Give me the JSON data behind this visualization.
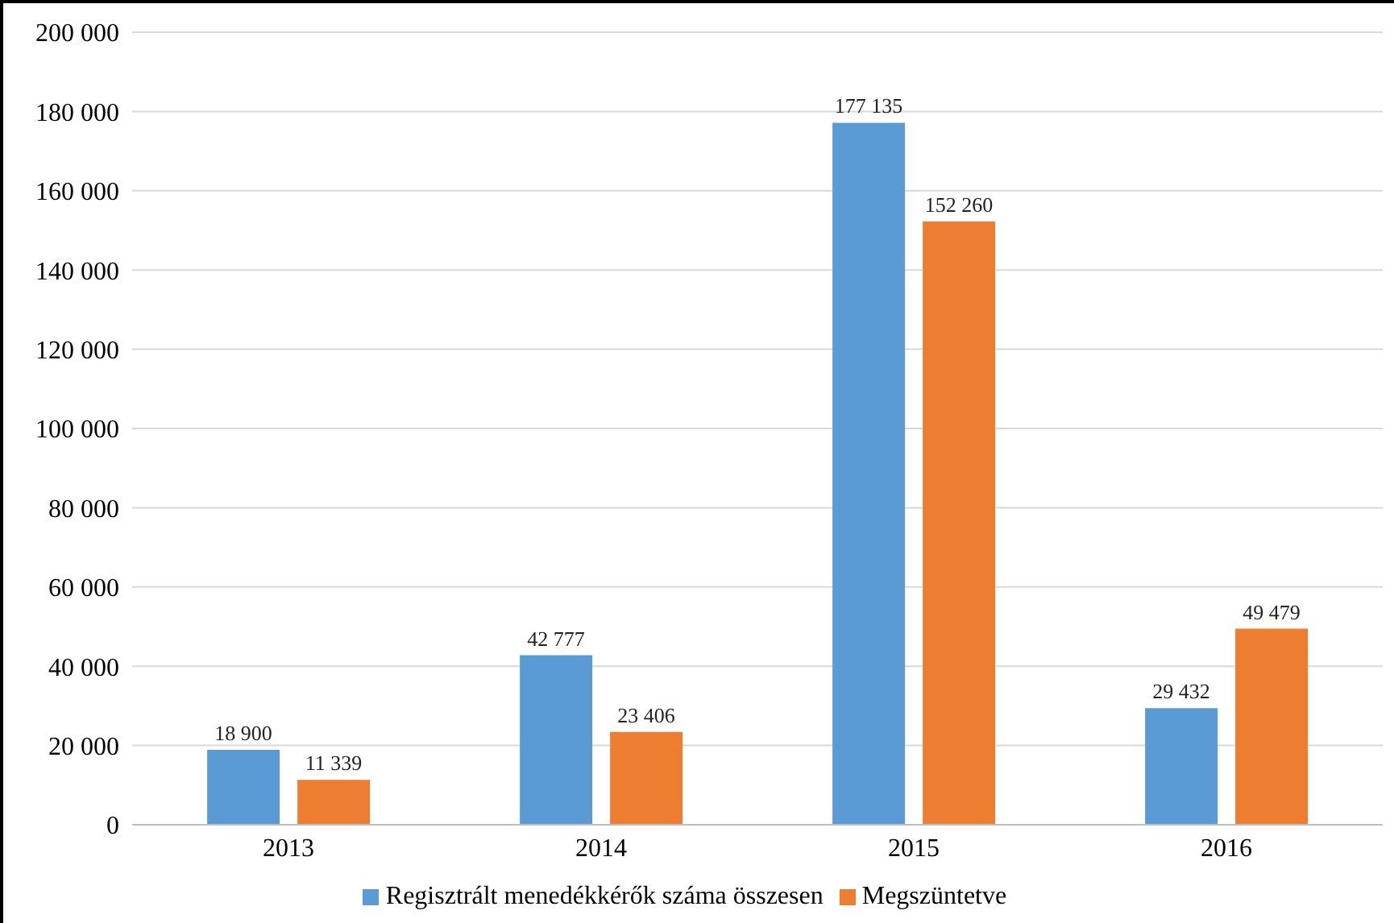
{
  "chart_data": {
    "type": "bar",
    "categories": [
      "2013",
      "2014",
      "2015",
      "2016"
    ],
    "series": [
      {
        "name": "Regisztrált menedékkérők száma összesen",
        "color": "#5b9bd5",
        "values": [
          18900,
          42777,
          177135,
          29432
        ],
        "value_labels": [
          "18 900",
          "42 777",
          "177 135",
          "29 432"
        ]
      },
      {
        "name": "Megszüntetve",
        "color": "#ed7d31",
        "values": [
          11339,
          23406,
          152260,
          49479
        ],
        "value_labels": [
          "11 339",
          "23 406",
          "152 260",
          "49 479"
        ]
      }
    ],
    "ylim": [
      0,
      200000
    ],
    "yticks": [
      {
        "value": 0,
        "label": "0"
      },
      {
        "value": 20000,
        "label": "20 000"
      },
      {
        "value": 40000,
        "label": "40 000"
      },
      {
        "value": 60000,
        "label": "60 000"
      },
      {
        "value": 80000,
        "label": "80 000"
      },
      {
        "value": 100000,
        "label": "100 000"
      },
      {
        "value": 120000,
        "label": "120 000"
      },
      {
        "value": 140000,
        "label": "140 000"
      },
      {
        "value": 160000,
        "label": "160 000"
      },
      {
        "value": 180000,
        "label": "180 000"
      },
      {
        "value": 200000,
        "label": "200 000"
      }
    ],
    "grid": "y",
    "legend": "bottom"
  }
}
